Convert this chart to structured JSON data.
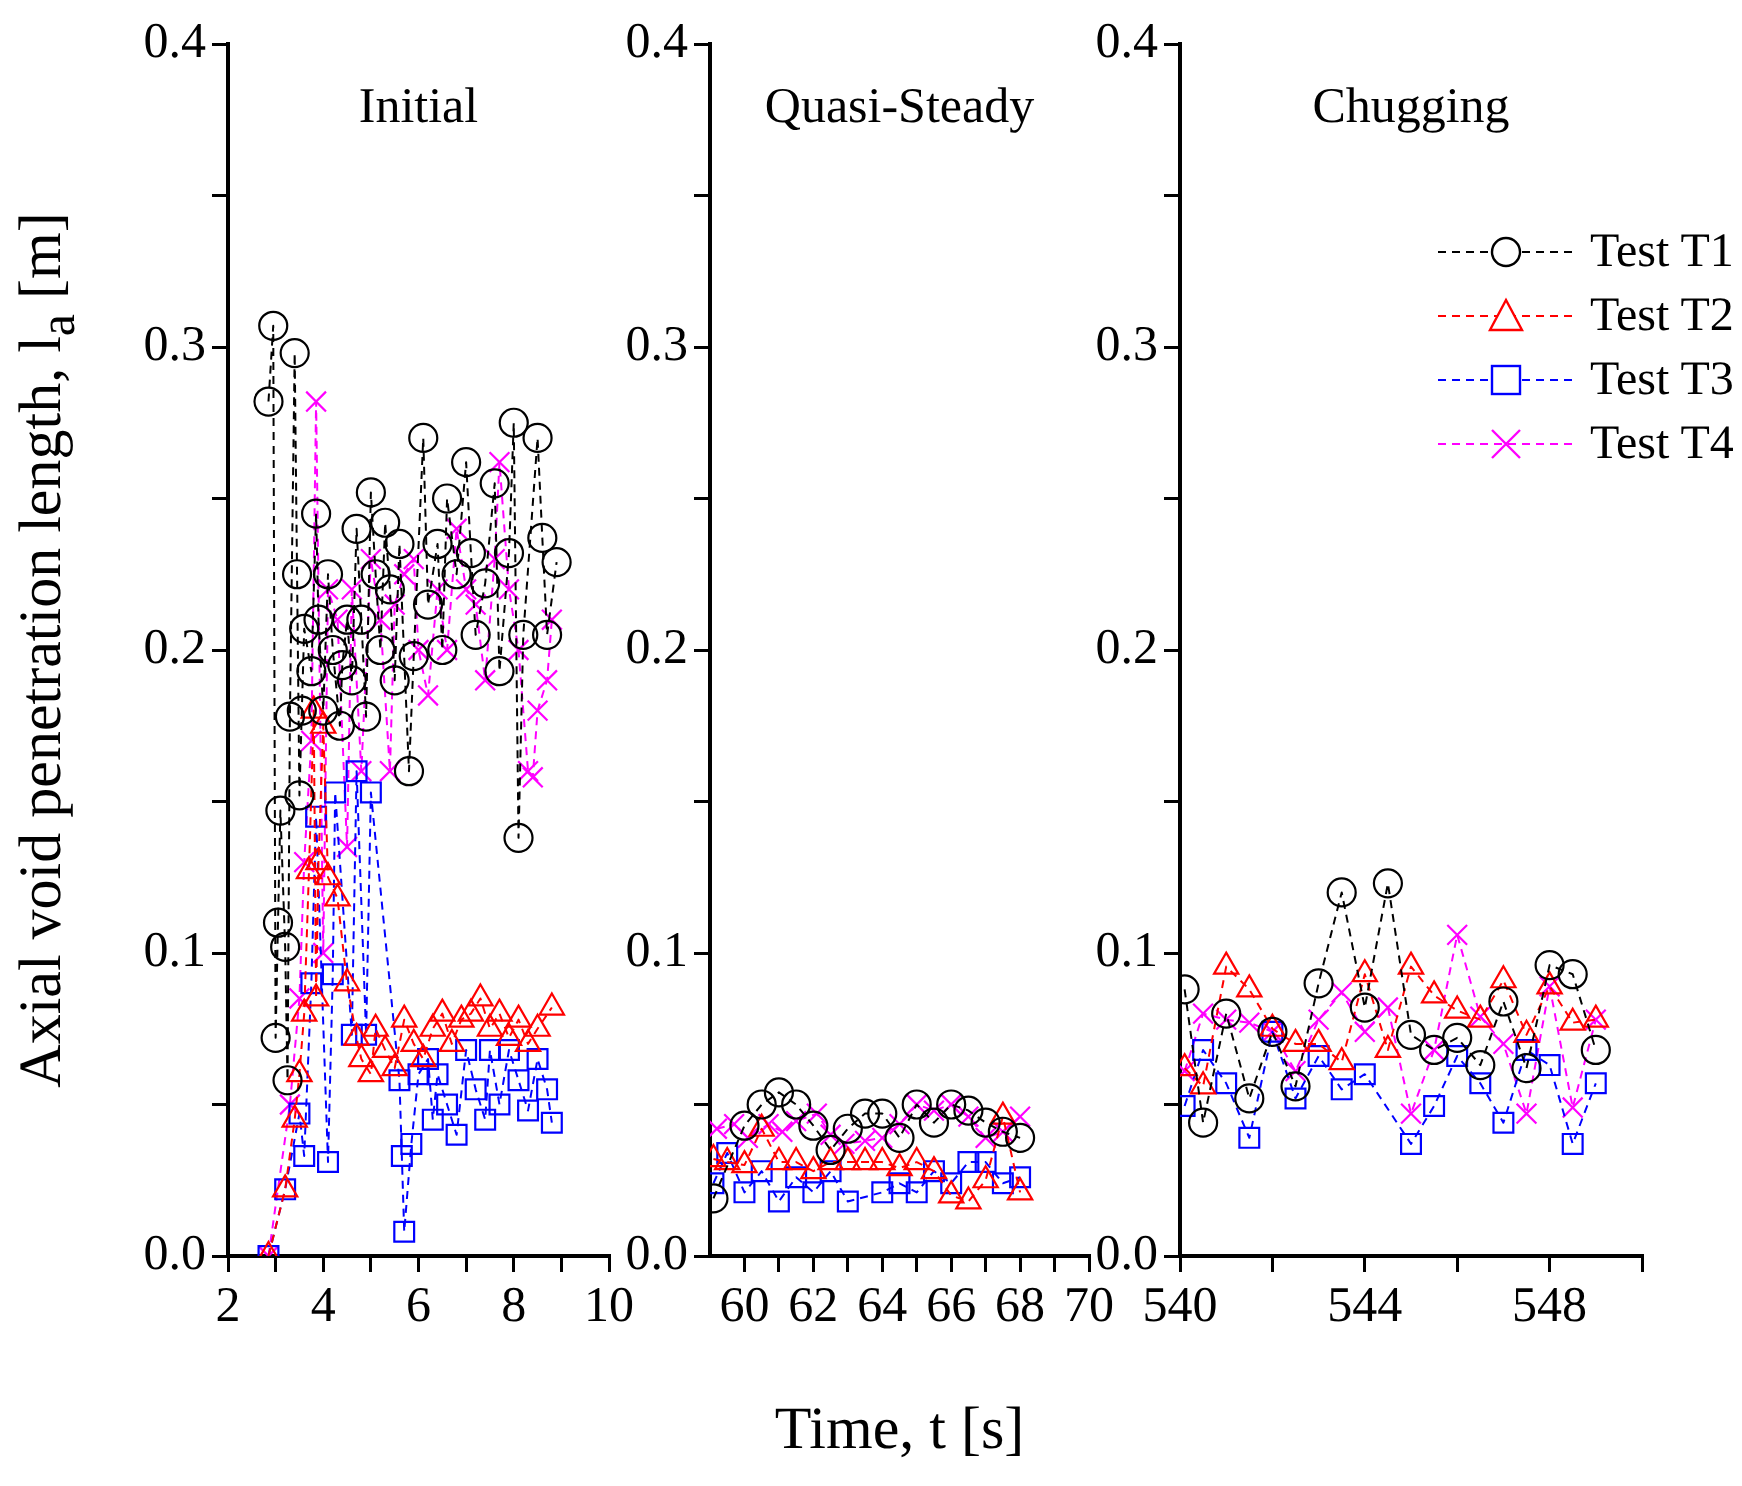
{
  "chart_data": [
    {
      "type": "line",
      "title": "Initial",
      "ylabel": "Axial void penetration length, l$_{a}$ [m]",
      "line_style": "dashed",
      "grid": false,
      "legend": false,
      "xlim": [
        2,
        10
      ],
      "xticks": [
        2,
        {
          "value": 3,
          "label": null
        },
        4,
        {
          "value": 5,
          "label": null
        },
        6,
        {
          "value": 7,
          "label": null
        },
        8,
        {
          "value": 9,
          "label": null
        },
        10
      ],
      "ylim": [
        0,
        0.4
      ],
      "yticks": [
        {
          "value": 0,
          "label": "0.0"
        },
        {
          "value": 0.05,
          "label": null
        },
        0.1,
        {
          "value": 0.15,
          "label": null
        },
        0.2,
        {
          "value": 0.25,
          "label": null
        },
        0.3,
        {
          "value": 0.35,
          "label": null
        },
        0.4
      ],
      "series": [
        {
          "color": "#000000",
          "marker": "circle",
          "x": [
            2.85,
            2.95,
            3.0,
            3.05,
            3.1,
            3.2,
            3.25,
            3.3,
            3.4,
            3.45,
            3.5,
            3.55,
            3.6,
            3.75,
            3.85,
            3.9,
            4.0,
            4.1,
            4.2,
            4.35,
            4.4,
            4.5,
            4.6,
            4.7,
            4.8,
            4.9,
            5.0,
            5.1,
            5.2,
            5.3,
            5.4,
            5.5,
            5.6,
            5.8,
            5.9,
            6.1,
            6.2,
            6.4,
            6.5,
            6.6,
            6.8,
            7.0,
            7.1,
            7.2,
            7.4,
            7.6,
            7.7,
            7.9,
            8.0,
            8.1,
            8.2,
            8.5,
            8.6,
            8.7,
            8.9
          ],
          "values": [
            0.282,
            0.307,
            0.072,
            0.11,
            0.147,
            0.102,
            0.058,
            0.178,
            0.298,
            0.225,
            0.152,
            0.18,
            0.207,
            0.193,
            0.245,
            0.21,
            0.18,
            0.225,
            0.2,
            0.175,
            0.195,
            0.21,
            0.19,
            0.24,
            0.21,
            0.178,
            0.252,
            0.225,
            0.2,
            0.242,
            0.22,
            0.19,
            0.235,
            0.16,
            0.198,
            0.27,
            0.215,
            0.235,
            0.2,
            0.25,
            0.225,
            0.262,
            0.232,
            0.205,
            0.222,
            0.255,
            0.193,
            0.232,
            0.275,
            0.138,
            0.205,
            0.27,
            0.237,
            0.205,
            0.229
          ]
        },
        {
          "color": "#ff0000",
          "marker": "triangle",
          "x": [
            2.85,
            3.2,
            3.4,
            3.5,
            3.6,
            3.7,
            3.8,
            3.85,
            3.9,
            4.0,
            4.1,
            4.3,
            4.5,
            4.7,
            4.8,
            5.0,
            5.1,
            5.3,
            5.5,
            5.7,
            5.9,
            6.1,
            6.3,
            6.5,
            6.7,
            6.9,
            7.1,
            7.3,
            7.5,
            7.7,
            7.9,
            8.1,
            8.3,
            8.5,
            8.8
          ],
          "values": [
            0.0,
            0.022,
            0.045,
            0.06,
            0.08,
            0.127,
            0.18,
            0.085,
            0.13,
            0.175,
            0.125,
            0.118,
            0.09,
            0.072,
            0.065,
            0.06,
            0.075,
            0.068,
            0.062,
            0.078,
            0.07,
            0.065,
            0.075,
            0.08,
            0.07,
            0.078,
            0.08,
            0.085,
            0.075,
            0.08,
            0.072,
            0.078,
            0.07,
            0.075,
            0.082
          ]
        },
        {
          "color": "#0000ff",
          "marker": "square",
          "x": [
            2.85,
            3.2,
            3.5,
            3.6,
            3.75,
            3.85,
            4.1,
            4.2,
            4.25,
            4.6,
            4.7,
            4.9,
            5.0,
            5.6,
            5.65,
            5.7,
            5.85,
            6.0,
            6.2,
            6.3,
            6.4,
            6.6,
            6.8,
            7.0,
            7.2,
            7.4,
            7.5,
            7.7,
            7.9,
            8.1,
            8.3,
            8.5,
            8.7,
            8.8
          ],
          "values": [
            0.0,
            0.022,
            0.047,
            0.033,
            0.09,
            0.145,
            0.031,
            0.093,
            0.153,
            0.073,
            0.16,
            0.073,
            0.153,
            0.058,
            0.033,
            0.008,
            0.037,
            0.06,
            0.065,
            0.045,
            0.06,
            0.05,
            0.04,
            0.068,
            0.055,
            0.045,
            0.068,
            0.05,
            0.068,
            0.058,
            0.048,
            0.065,
            0.055,
            0.044
          ]
        },
        {
          "color": "#ff00ff",
          "marker": "cross",
          "x": [
            2.85,
            3.3,
            3.5,
            3.6,
            3.75,
            3.85,
            4.0,
            4.1,
            4.3,
            4.5,
            4.6,
            4.8,
            5.0,
            5.2,
            5.4,
            5.5,
            5.7,
            5.9,
            6.0,
            6.2,
            6.4,
            6.6,
            6.8,
            7.0,
            7.2,
            7.4,
            7.6,
            7.7,
            7.9,
            8.1,
            8.3,
            8.4,
            8.5,
            8.7,
            8.8
          ],
          "values": [
            0.0,
            0.05,
            0.085,
            0.13,
            0.17,
            0.282,
            0.1,
            0.22,
            0.21,
            0.135,
            0.22,
            0.16,
            0.23,
            0.21,
            0.16,
            0.215,
            0.225,
            0.23,
            0.2,
            0.185,
            0.22,
            0.2,
            0.24,
            0.22,
            0.215,
            0.19,
            0.23,
            0.262,
            0.22,
            0.2,
            0.16,
            0.158,
            0.18,
            0.19,
            0.21
          ]
        }
      ]
    },
    {
      "type": "line",
      "title": "Quasi-Steady",
      "xlabel": "Time, t  [s]",
      "line_style": "dashed",
      "grid": false,
      "legend": false,
      "xlim": [
        59,
        70
      ],
      "xticks": [
        60,
        {
          "value": 61,
          "label": null
        },
        62,
        {
          "value": 63,
          "label": null
        },
        64,
        {
          "value": 65,
          "label": null
        },
        66,
        {
          "value": 67,
          "label": null
        },
        68,
        {
          "value": 69,
          "label": null
        },
        70
      ],
      "ylim": [
        0,
        0.4
      ],
      "yticks": [
        {
          "value": 0,
          "label": "0.0"
        },
        {
          "value": 0.05,
          "label": null
        },
        0.1,
        {
          "value": 0.15,
          "label": null
        },
        0.2,
        {
          "value": 0.25,
          "label": null
        },
        0.3,
        {
          "value": 0.35,
          "label": null
        },
        0.4
      ],
      "series": [
        {
          "color": "#000000",
          "marker": "circle",
          "x": [
            59.1,
            60,
            60.5,
            61,
            61.5,
            62,
            62.5,
            63,
            63.5,
            64,
            64.5,
            65,
            65.5,
            66,
            66.5,
            67,
            67.5,
            68
          ],
          "values": [
            0.019,
            0.043,
            0.05,
            0.054,
            0.05,
            0.043,
            0.035,
            0.042,
            0.047,
            0.047,
            0.039,
            0.05,
            0.044,
            0.05,
            0.048,
            0.044,
            0.041,
            0.039
          ]
        },
        {
          "color": "#ff0000",
          "marker": "triangle",
          "x": [
            59.1,
            59.5,
            60,
            60.5,
            61,
            61.5,
            62,
            62.5,
            63,
            63.5,
            64,
            64.5,
            65,
            65.5,
            66,
            66.5,
            67,
            67.5,
            68
          ],
          "values": [
            0.032,
            0.031,
            0.03,
            0.042,
            0.031,
            0.031,
            0.028,
            0.031,
            0.031,
            0.031,
            0.031,
            0.029,
            0.031,
            0.028,
            0.02,
            0.018,
            0.025,
            0.046,
            0.021
          ]
        },
        {
          "color": "#0000ff",
          "marker": "square",
          "x": [
            59.1,
            59.5,
            60,
            60.5,
            61,
            61.5,
            62,
            62.5,
            63,
            64,
            64.5,
            65,
            65.5,
            66,
            66.5,
            67,
            67.5,
            68
          ],
          "values": [
            0.024,
            0.034,
            0.021,
            0.028,
            0.018,
            0.026,
            0.021,
            0.028,
            0.018,
            0.021,
            0.024,
            0.021,
            0.028,
            0.024,
            0.031,
            0.031,
            0.024,
            0.026
          ]
        },
        {
          "color": "#ff00ff",
          "marker": "cross",
          "x": [
            59.2,
            59.7,
            60.1,
            60.7,
            61.1,
            61.5,
            62.1,
            62.5,
            62.9,
            63.5,
            64,
            64.5,
            65,
            65.5,
            66,
            66.5,
            67,
            67.5,
            68
          ],
          "values": [
            0.042,
            0.0435,
            0.039,
            0.0435,
            0.041,
            0.0445,
            0.047,
            0.04,
            0.037,
            0.038,
            0.039,
            0.0435,
            0.05,
            0.048,
            0.05,
            0.046,
            0.039,
            0.041,
            0.046
          ]
        }
      ]
    },
    {
      "type": "line",
      "title": "Chugging",
      "line_style": "dashed",
      "grid": false,
      "legend": "top right",
      "xlim": [
        540,
        550
      ],
      "xticks": [
        540,
        {
          "value": 542,
          "label": null
        },
        544,
        {
          "value": 546,
          "label": null
        },
        548,
        {
          "value": 550,
          "label": null
        }
      ],
      "ylim": [
        0,
        0.4
      ],
      "yticks": [
        {
          "value": 0,
          "label": "0.0"
        },
        {
          "value": 0.05,
          "label": null
        },
        0.1,
        {
          "value": 0.15,
          "label": null
        },
        0.2,
        {
          "value": 0.25,
          "label": null
        },
        0.3,
        {
          "value": 0.35,
          "label": null
        },
        0.4
      ],
      "series": [
        {
          "name": "Test T1",
          "color": "#000000",
          "marker": "circle",
          "x": [
            540.1,
            540.5,
            541,
            541.5,
            542,
            542.5,
            543,
            543.5,
            544,
            544.5,
            545,
            545.5,
            546,
            546.5,
            547,
            547.5,
            548,
            548.5,
            549
          ],
          "values": [
            0.088,
            0.044,
            0.08,
            0.052,
            0.074,
            0.056,
            0.09,
            0.12,
            0.082,
            0.123,
            0.073,
            0.068,
            0.072,
            0.063,
            0.084,
            0.062,
            0.096,
            0.093,
            0.068
          ]
        },
        {
          "name": "Test T2",
          "color": "#ff0000",
          "marker": "triangle",
          "x": [
            540.1,
            540.5,
            541,
            541.5,
            542,
            542.5,
            543,
            543.5,
            544,
            544.5,
            545,
            545.5,
            546,
            546.5,
            547,
            547.5,
            548,
            548.5,
            549
          ],
          "values": [
            0.062,
            0.056,
            0.0955,
            0.088,
            0.075,
            0.07,
            0.07,
            0.064,
            0.093,
            0.068,
            0.0955,
            0.086,
            0.081,
            0.078,
            0.091,
            0.073,
            0.089,
            0.077,
            0.078
          ]
        },
        {
          "name": "Test T3",
          "color": "#0000ff",
          "marker": "square",
          "x": [
            540.1,
            540.5,
            541,
            541.5,
            542,
            542.5,
            543,
            543.5,
            544,
            545,
            545.5,
            546,
            546.5,
            547,
            547.5,
            548,
            548.5,
            549
          ],
          "values": [
            0.0495,
            0.068,
            0.057,
            0.039,
            0.074,
            0.052,
            0.066,
            0.055,
            0.06,
            0.037,
            0.0495,
            0.066,
            0.057,
            0.044,
            0.068,
            0.063,
            0.037,
            0.057
          ]
        },
        {
          "name": "Test T4",
          "color": "#ff00ff",
          "marker": "cross",
          "x": [
            540.1,
            540.5,
            541,
            541.5,
            542,
            542.5,
            543,
            543.5,
            544,
            544.5,
            545,
            545.5,
            546,
            546.5,
            547,
            547.5,
            548,
            548.5,
            549
          ],
          "values": [
            0.061,
            0.08,
            0.078,
            0.077,
            0.074,
            0.061,
            0.078,
            0.087,
            0.074,
            0.082,
            0.047,
            0.068,
            0.106,
            0.079,
            0.07,
            0.047,
            0.089,
            0.049,
            0.078
          ]
        }
      ]
    }
  ]
}
